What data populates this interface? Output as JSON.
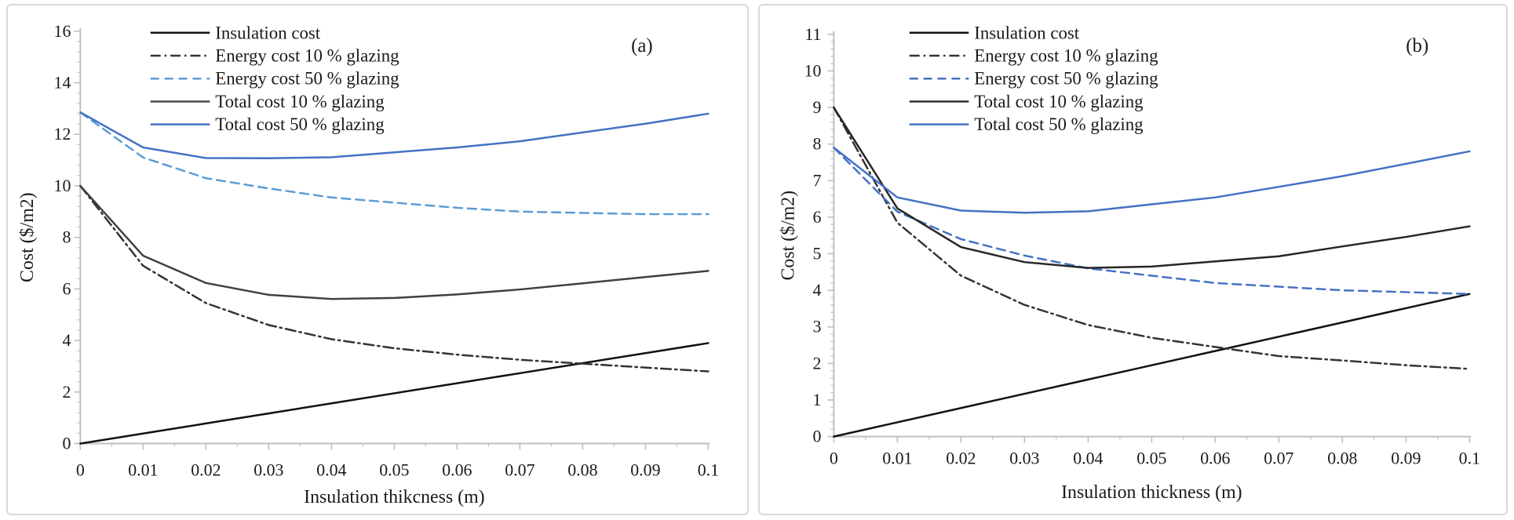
{
  "chart_data": [
    {
      "type": "line",
      "panel_label": "(a)",
      "xlabel": "Insulation thikcness (m)",
      "ylabel": "Cost ($/m2)",
      "xlim": [
        0,
        0.1
      ],
      "ylim": [
        0,
        16
      ],
      "y_major_step": 2,
      "y_minor_step": 0.4,
      "x_major_step": 0.01,
      "x_minor_step": 0.005,
      "grid": false,
      "legend_position": "top-left-inside",
      "axis_color": "#bfbfbf",
      "x": [
        0,
        0.01,
        0.02,
        0.03,
        0.04,
        0.05,
        0.06,
        0.07,
        0.08,
        0.09,
        0.1
      ],
      "x_tick_labels": [
        "0",
        "0.01",
        "0.02",
        "0.03",
        "0.04",
        "0.05",
        "0.06",
        "0.07",
        "0.08",
        "0.09",
        "0.1"
      ],
      "y_tick_labels": [
        "0",
        "2",
        "4",
        "6",
        "8",
        "10",
        "12",
        "14",
        "16"
      ],
      "series": [
        {
          "name": "Insulation cost",
          "color": "#111111",
          "style": "solid",
          "values": [
            0,
            0.39,
            0.78,
            1.17,
            1.56,
            1.95,
            2.34,
            2.73,
            3.12,
            3.51,
            3.9
          ]
        },
        {
          "name": "Energy cost 10 % glazing",
          "color": "#333333",
          "style": "dashdot",
          "values": [
            10.0,
            6.9,
            5.45,
            4.6,
            4.05,
            3.7,
            3.45,
            3.25,
            3.1,
            2.95,
            2.8
          ]
        },
        {
          "name": "Energy cost 50 % glazing",
          "color": "#5b9bd5",
          "style": "dashed",
          "values": [
            12.85,
            11.1,
            10.3,
            9.9,
            9.55,
            9.35,
            9.15,
            9.0,
            8.95,
            8.9,
            8.9
          ]
        },
        {
          "name": "Total cost 10 % glazing",
          "color": "#404040",
          "style": "solid",
          "values": [
            10.0,
            7.29,
            6.23,
            5.77,
            5.61,
            5.65,
            5.79,
            5.98,
            6.22,
            6.46,
            6.7
          ]
        },
        {
          "name": "Total cost 50 % glazing",
          "color": "#4472c4",
          "style": "solid",
          "values": [
            12.85,
            11.49,
            11.08,
            11.07,
            11.11,
            11.3,
            11.49,
            11.73,
            12.07,
            12.41,
            12.8
          ]
        }
      ]
    },
    {
      "type": "line",
      "panel_label": "(b)",
      "xlabel": "Insulation thickness (m)",
      "ylabel": "Cost ($/m2)",
      "xlim": [
        0,
        0.1
      ],
      "ylim": [
        0,
        11
      ],
      "y_major_step": 1,
      "y_minor_step": 0.2,
      "x_major_step": 0.01,
      "x_minor_step": 0.005,
      "grid": false,
      "legend_position": "top-left-inside",
      "axis_color": "#bfbfbf",
      "x": [
        0,
        0.01,
        0.02,
        0.03,
        0.04,
        0.05,
        0.06,
        0.07,
        0.08,
        0.09,
        0.1
      ],
      "x_tick_labels": [
        "0",
        "0.01",
        "0.02",
        "0.03",
        "0.04",
        "0.05",
        "0.06",
        "0.07",
        "0.08",
        "0.09",
        "0.1"
      ],
      "y_tick_labels": [
        "0",
        "1",
        "2",
        "3",
        "4",
        "5",
        "6",
        "7",
        "8",
        "9",
        "10",
        "11"
      ],
      "series": [
        {
          "name": "Insulation cost",
          "color": "#111111",
          "style": "solid",
          "values": [
            0,
            0.39,
            0.78,
            1.17,
            1.56,
            1.95,
            2.34,
            2.73,
            3.12,
            3.51,
            3.9
          ]
        },
        {
          "name": "Energy cost 10 % glazing",
          "color": "#333333",
          "style": "dashdot",
          "values": [
            9.0,
            5.85,
            4.4,
            3.6,
            3.05,
            2.7,
            2.45,
            2.2,
            2.08,
            1.95,
            1.85
          ]
        },
        {
          "name": "Energy cost 50 % glazing",
          "color": "#4472c4",
          "style": "dashed",
          "values": [
            7.9,
            6.15,
            5.4,
            4.95,
            4.6,
            4.4,
            4.2,
            4.1,
            4.0,
            3.95,
            3.9
          ]
        },
        {
          "name": "Total cost 10 % glazing",
          "color": "#262626",
          "style": "solid",
          "values": [
            9.0,
            6.24,
            5.18,
            4.77,
            4.61,
            4.65,
            4.79,
            4.93,
            5.2,
            5.46,
            5.75
          ]
        },
        {
          "name": "Total cost 50 % glazing",
          "color": "#4472c4",
          "style": "solid",
          "values": [
            7.9,
            6.54,
            6.18,
            6.12,
            6.16,
            6.35,
            6.54,
            6.83,
            7.12,
            7.46,
            7.8
          ]
        }
      ]
    }
  ]
}
